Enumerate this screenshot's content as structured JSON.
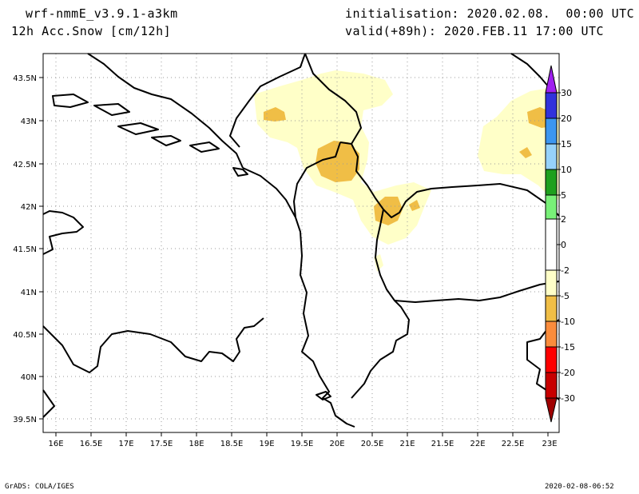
{
  "header": {
    "model": "wrf-nmmE_v3.9.1-a3km",
    "variable": "12h Acc.Snow [cm/12h]",
    "init": "initialisation: 2020.02.08.  00:00 UTC",
    "valid": "valid(+89h): 2020.FEB.11 17:00 UTC"
  },
  "footer": {
    "credit": "GrADS: COLA/IGES",
    "timestamp": "2020-02-08-06:52"
  },
  "map": {
    "lon_ticks": [
      "16E",
      "16.5E",
      "17E",
      "17.5E",
      "18E",
      "18.5E",
      "19E",
      "19.5E",
      "20E",
      "20.5E",
      "21E",
      "21.5E",
      "22E",
      "22.5E",
      "23E"
    ],
    "lat_ticks": [
      "43.5N",
      "43N",
      "42.5N",
      "42N",
      "41.5N",
      "41N",
      "40.5N",
      "40N",
      "39.5N"
    ]
  },
  "colorbar": {
    "labels": [
      "30",
      "20",
      "15",
      "10",
      "5",
      "2",
      "0",
      "-2",
      "-5",
      "-10",
      "-15",
      "-20",
      "-30"
    ],
    "colors": {
      "violet": "#a020f0",
      "blue": "#3232dc",
      "mid_blue": "#3c96f0",
      "light_blue": "#96d2fa",
      "green": "#1ea01e",
      "light_green": "#78f078",
      "white": "#ffffff",
      "cream": "#ffffc8",
      "yellow_orange": "#f0be46",
      "orange": "#fa8c3c",
      "red": "#ff0000",
      "dark_red": "#c80000",
      "maroon": "#a00000"
    }
  }
}
